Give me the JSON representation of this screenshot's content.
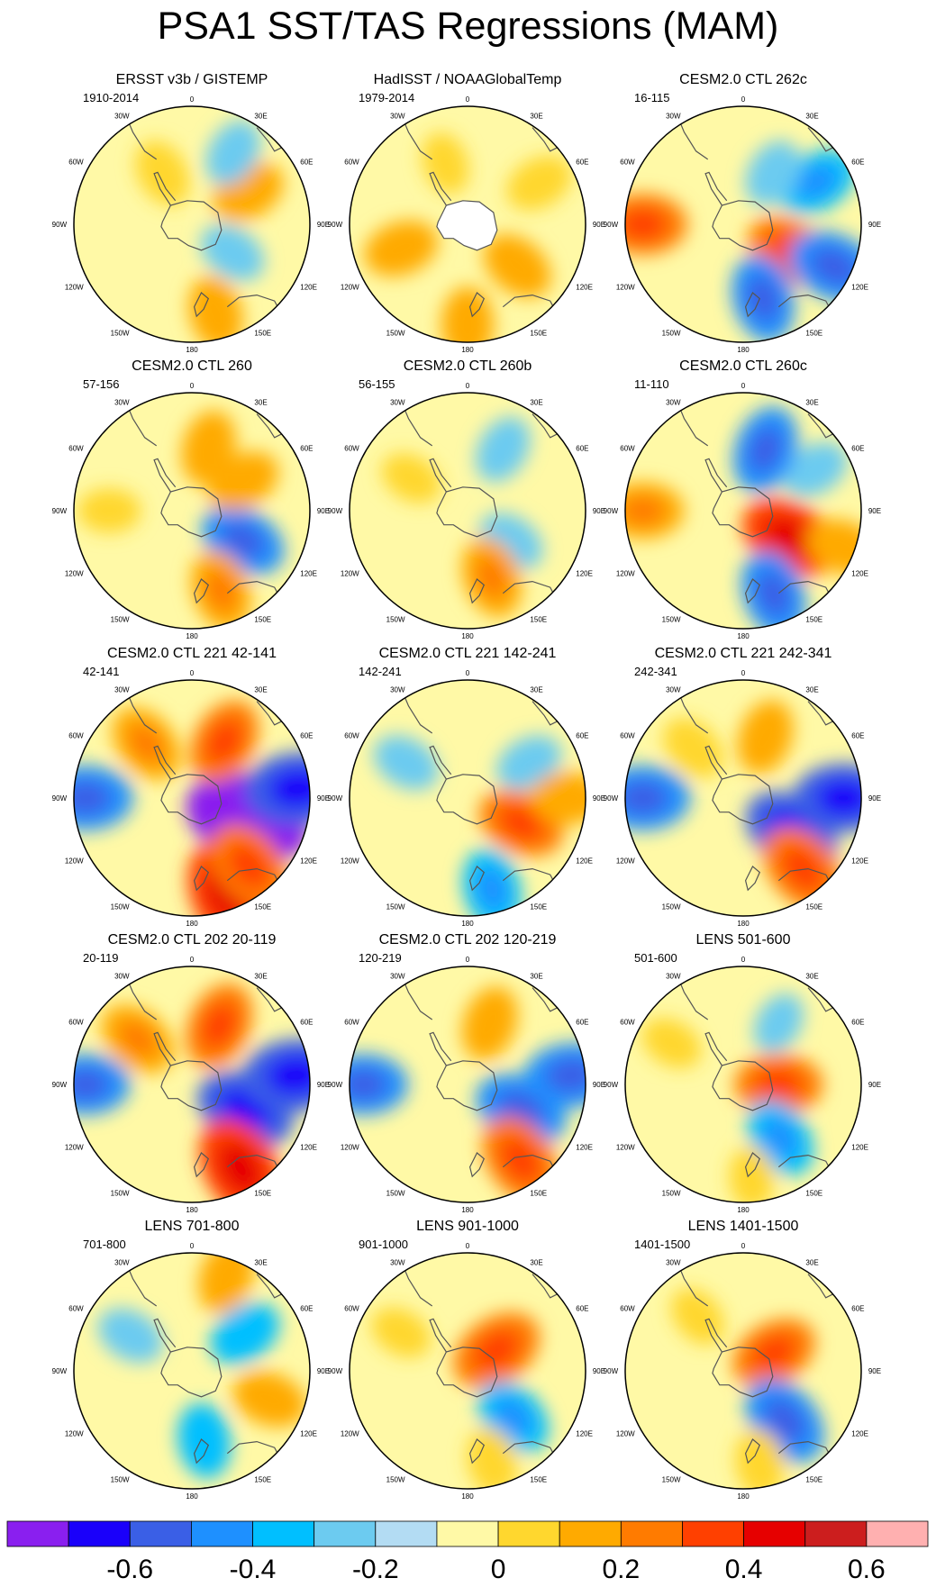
{
  "title": "PSA1 SST/TAS Regressions (MAM)",
  "lon_labels": {
    "top": "0",
    "bottom": "180",
    "left": "90W",
    "right": "90E",
    "upper_left_30": "30W",
    "upper_right_30": "30E",
    "upper_left_60": "60W",
    "upper_right_60": "60E",
    "lower_left_60": "120W",
    "lower_right_60": "120E",
    "lower_left_30": "150W",
    "lower_right_30": "150E"
  },
  "panels": [
    {
      "title": "ERSST v3b / GISTEMP",
      "period": "1910-2014"
    },
    {
      "title": "HadISST / NOAAGlobalTemp",
      "period": "1979-2014"
    },
    {
      "title": "CESM2.0 CTL 262c",
      "period": "16-115"
    },
    {
      "title": "CESM2.0 CTL 260",
      "period": "57-156"
    },
    {
      "title": "CESM2.0 CTL 260b",
      "period": "56-155"
    },
    {
      "title": "CESM2.0 CTL 260c",
      "period": "11-110"
    },
    {
      "title": "CESM2.0 CTL 221 42-141",
      "period": "42-141"
    },
    {
      "title": "CESM2.0 CTL 221 142-241",
      "period": "142-241"
    },
    {
      "title": "CESM2.0 CTL 221 242-341",
      "period": "242-341"
    },
    {
      "title": "CESM2.0 CTL 202 20-119",
      "period": "20-119"
    },
    {
      "title": "CESM2.0 CTL 202 120-219",
      "period": "120-219"
    },
    {
      "title": "LENS 501-600",
      "period": "501-600"
    },
    {
      "title": "LENS 701-800",
      "period": "701-800"
    },
    {
      "title": "LENS 901-1000",
      "period": "901-1000"
    },
    {
      "title": "LENS 1401-1500",
      "period": "1401-1500"
    }
  ],
  "chart_data": {
    "type": "heatmap",
    "projection": "south polar stereographic",
    "variable": "SST/TAS regression onto PSA1 (MAM)",
    "color_levels": [
      -0.7,
      -0.6,
      -0.5,
      -0.4,
      -0.3,
      -0.2,
      -0.1,
      0,
      0.1,
      0.2,
      0.3,
      0.4,
      0.5,
      0.6,
      0.7
    ],
    "colors": [
      "#8a1fef",
      "#1a00fa",
      "#3a5fe6",
      "#1e90ff",
      "#00bfff",
      "#6ccbf0",
      "#b3dcf3",
      "#fff9a6",
      "#ffd72e",
      "#ffaa00",
      "#ff7b00",
      "#ff4000",
      "#e60000",
      "#cc1e1e",
      "#ffb0b0"
    ],
    "colorbar_ticks": [
      "-0.6",
      "-0.4",
      "-0.2",
      "0",
      "0.2",
      "0.4",
      "0.6"
    ],
    "colorbar_tick_values": [
      -0.6,
      -0.4,
      -0.2,
      0,
      0.2,
      0.4,
      0.6
    ],
    "anomalies": [
      [
        {
          "lon": 125,
          "r": 0.42,
          "v": -0.15
        },
        {
          "lon": 165,
          "r": 0.78,
          "v": 0.2
        },
        {
          "lon": 60,
          "r": 0.55,
          "v": 0.2
        },
        {
          "lon": 30,
          "r": 0.7,
          "v": -0.15
        },
        {
          "lon": -30,
          "r": 0.5,
          "v": 0.15
        }
      ],
      [
        {
          "lon": 130,
          "r": 0.55,
          "v": 0.2
        },
        {
          "lon": -110,
          "r": 0.6,
          "v": 0.2
        },
        {
          "lon": 180,
          "r": 0.85,
          "v": 0.2
        },
        {
          "lon": -20,
          "r": 0.55,
          "v": 0.1
        },
        {
          "lon": 60,
          "r": 0.7,
          "v": 0.15
        }
      ],
      [
        {
          "lon": 120,
          "r": 0.45,
          "v": 0.3
        },
        {
          "lon": 115,
          "r": 0.85,
          "v": -0.35
        },
        {
          "lon": 165,
          "r": 0.65,
          "v": -0.3
        },
        {
          "lon": -90,
          "r": 0.85,
          "v": 0.3
        },
        {
          "lon": 60,
          "r": 0.72,
          "v": -0.25
        },
        {
          "lon": 30,
          "r": 0.5,
          "v": -0.15
        }
      ],
      [
        {
          "lon": 120,
          "r": 0.5,
          "v": -0.3
        },
        {
          "lon": 160,
          "r": 0.72,
          "v": 0.25
        },
        {
          "lon": 60,
          "r": 0.5,
          "v": 0.2
        },
        {
          "lon": 15,
          "r": 0.55,
          "v": 0.2
        },
        {
          "lon": -90,
          "r": 0.7,
          "v": 0.1
        }
      ],
      [
        {
          "lon": 125,
          "r": 0.45,
          "v": -0.15
        },
        {
          "lon": 160,
          "r": 0.6,
          "v": 0.25
        },
        {
          "lon": 30,
          "r": 0.6,
          "v": -0.15
        },
        {
          "lon": -60,
          "r": 0.55,
          "v": 0.1
        }
      ],
      [
        {
          "lon": 120,
          "r": 0.45,
          "v": 0.4
        },
        {
          "lon": 160,
          "r": 0.75,
          "v": -0.3
        },
        {
          "lon": 60,
          "r": 0.7,
          "v": -0.15
        },
        {
          "lon": 20,
          "r": 0.55,
          "v": -0.3
        },
        {
          "lon": -90,
          "r": 0.85,
          "v": 0.25
        },
        {
          "lon": 110,
          "r": 0.9,
          "v": 0.2
        }
      ],
      [
        {
          "lon": 110,
          "r": 0.5,
          "v": -0.6
        },
        {
          "lon": 160,
          "r": 0.85,
          "v": 0.45
        },
        {
          "lon": 140,
          "r": 0.75,
          "v": 0.35
        },
        {
          "lon": 85,
          "r": 0.9,
          "v": -0.45
        },
        {
          "lon": 30,
          "r": 0.55,
          "v": 0.3
        },
        {
          "lon": -40,
          "r": 0.6,
          "v": 0.25
        },
        {
          "lon": -90,
          "r": 0.9,
          "v": -0.35
        }
      ],
      [
        {
          "lon": 115,
          "r": 0.5,
          "v": 0.3
        },
        {
          "lon": 165,
          "r": 0.8,
          "v": -0.25
        },
        {
          "lon": 60,
          "r": 0.6,
          "v": -0.15
        },
        {
          "lon": -60,
          "r": 0.6,
          "v": -0.15
        },
        {
          "lon": 90,
          "r": 0.85,
          "v": 0.2
        }
      ],
      [
        {
          "lon": 125,
          "r": 0.5,
          "v": -0.4
        },
        {
          "lon": 140,
          "r": 0.78,
          "v": 0.35
        },
        {
          "lon": 90,
          "r": 0.85,
          "v": -0.4
        },
        {
          "lon": -90,
          "r": 0.85,
          "v": -0.35
        },
        {
          "lon": 20,
          "r": 0.55,
          "v": 0.2
        },
        {
          "lon": -45,
          "r": 0.6,
          "v": 0.15
        }
      ],
      [
        {
          "lon": 115,
          "r": 0.5,
          "v": -0.4
        },
        {
          "lon": 150,
          "r": 0.82,
          "v": 0.45
        },
        {
          "lon": 85,
          "r": 0.88,
          "v": -0.45
        },
        {
          "lon": 25,
          "r": 0.55,
          "v": 0.3
        },
        {
          "lon": -50,
          "r": 0.6,
          "v": 0.25
        },
        {
          "lon": -90,
          "r": 0.9,
          "v": -0.3
        }
      ],
      [
        {
          "lon": 115,
          "r": 0.5,
          "v": -0.35
        },
        {
          "lon": 145,
          "r": 0.78,
          "v": 0.35
        },
        {
          "lon": 85,
          "r": 0.88,
          "v": -0.35
        },
        {
          "lon": 20,
          "r": 0.55,
          "v": 0.2
        },
        {
          "lon": -90,
          "r": 0.88,
          "v": -0.3
        }
      ],
      [
        {
          "lon": 90,
          "r": 0.3,
          "v": 0.3
        },
        {
          "lon": 145,
          "r": 0.55,
          "v": -0.25
        },
        {
          "lon": 175,
          "r": 0.8,
          "v": 0.1
        },
        {
          "lon": -60,
          "r": 0.7,
          "v": 0.1
        },
        {
          "lon": 30,
          "r": 0.6,
          "v": -0.1
        }
      ],
      [
        {
          "lon": 110,
          "r": 0.7,
          "v": 0.2
        },
        {
          "lon": 170,
          "r": 0.6,
          "v": -0.2
        },
        {
          "lon": 55,
          "r": 0.55,
          "v": -0.2
        },
        {
          "lon": 20,
          "r": 0.85,
          "v": 0.2
        },
        {
          "lon": -60,
          "r": 0.6,
          "v": -0.15
        }
      ],
      [
        {
          "lon": 55,
          "r": 0.3,
          "v": 0.35
        },
        {
          "lon": 135,
          "r": 0.55,
          "v": -0.25
        },
        {
          "lon": 165,
          "r": 0.8,
          "v": 0.15
        },
        {
          "lon": -60,
          "r": 0.65,
          "v": 0.1
        }
      ],
      [
        {
          "lon": 60,
          "r": 0.3,
          "v": 0.3
        },
        {
          "lon": 140,
          "r": 0.55,
          "v": -0.35
        },
        {
          "lon": 170,
          "r": 0.8,
          "v": 0.15
        },
        {
          "lon": -40,
          "r": 0.6,
          "v": 0.1
        }
      ]
    ]
  }
}
